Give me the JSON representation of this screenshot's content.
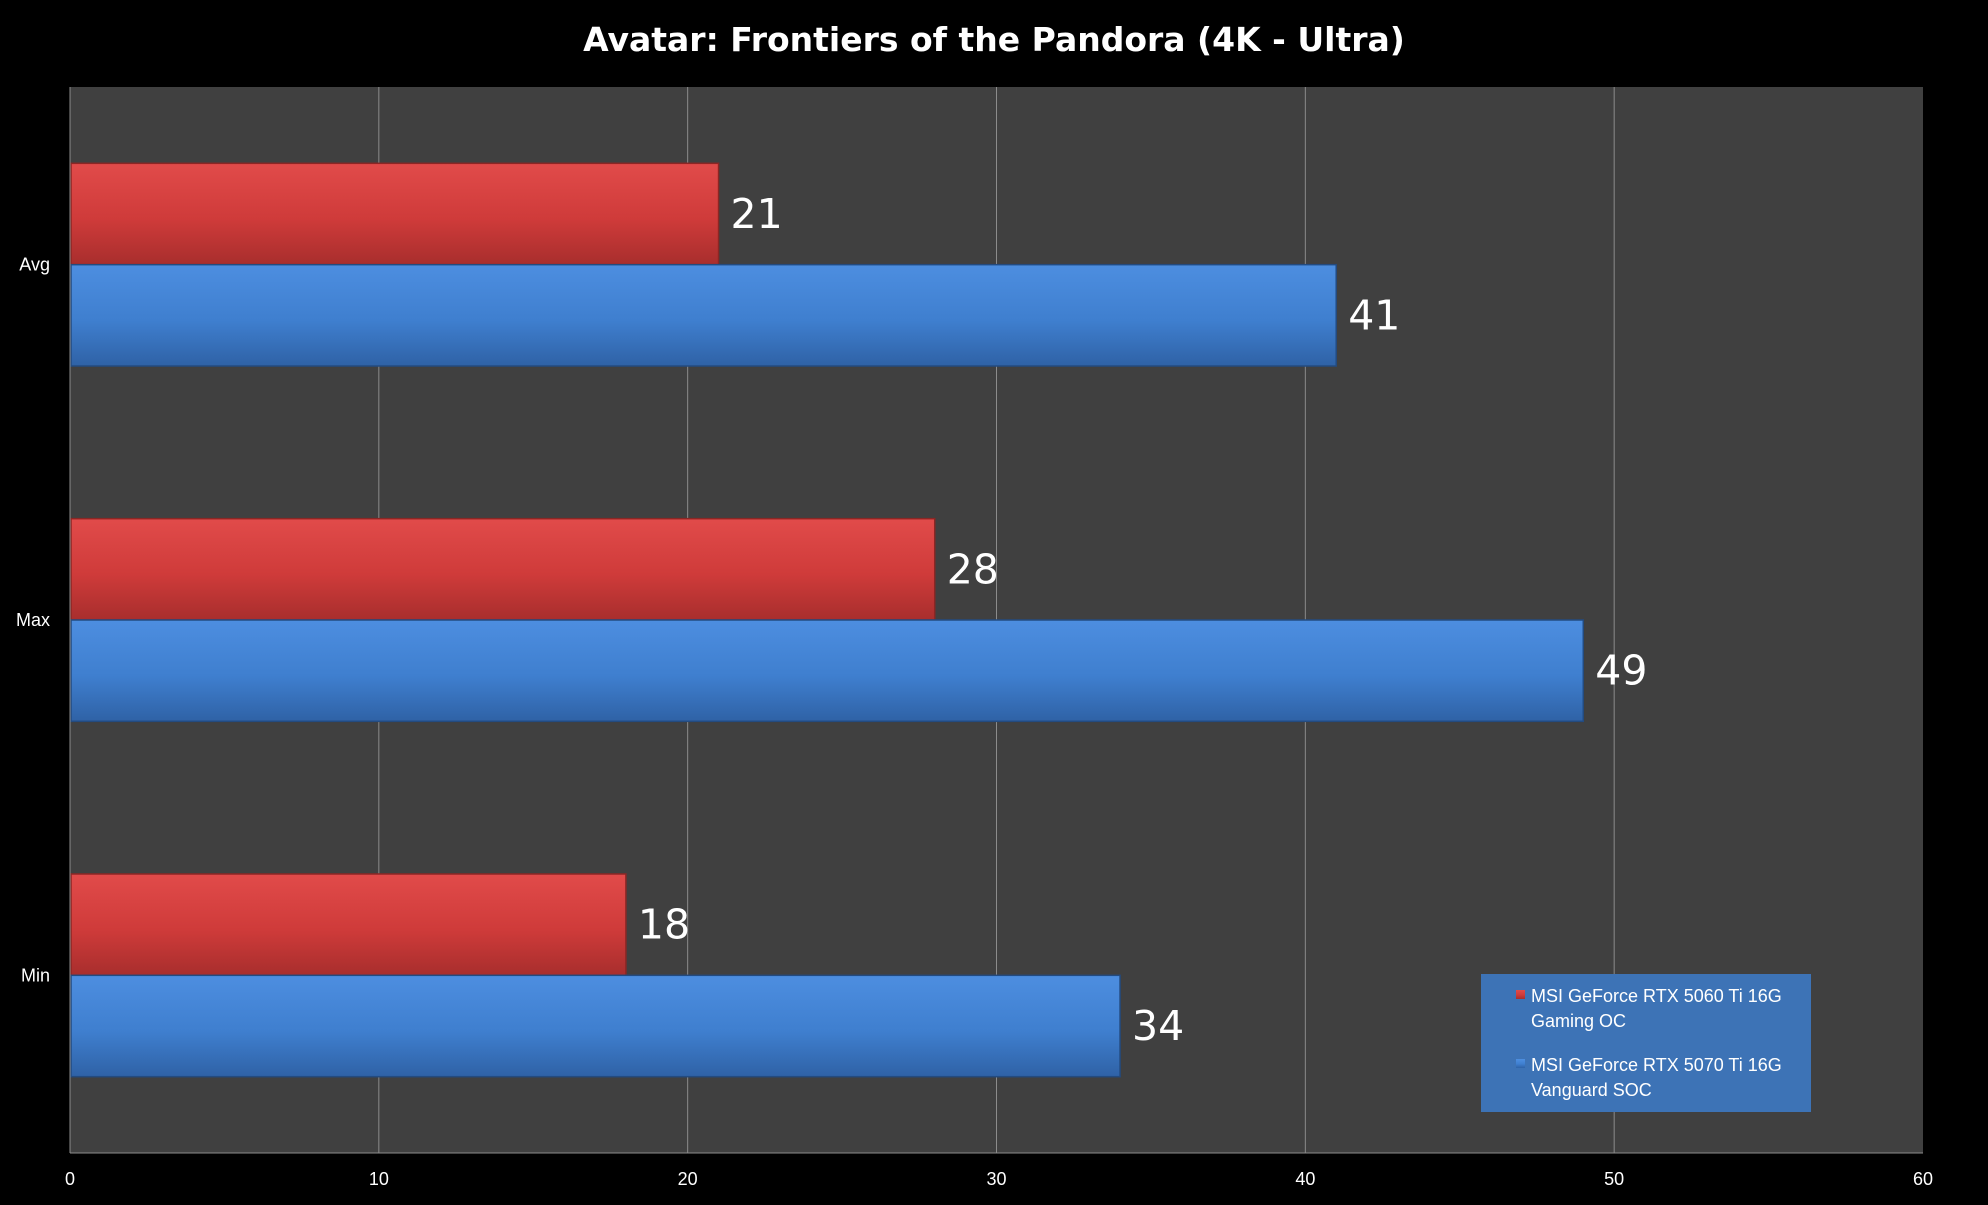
{
  "chart_data": {
    "type": "bar",
    "orientation": "horizontal",
    "title": "Avatar: Frontiers of the Pandora (4K - Ultra)",
    "categories": [
      "Avg",
      "Max",
      "Min"
    ],
    "series": [
      {
        "name": "MSI GeForce RTX 5060 Ti 16G Gaming OC",
        "values": [
          21,
          28,
          18
        ],
        "color": "#d63a38"
      },
      {
        "name": "MSI GeForce RTX 5070 Ti 16G Vanguard SOC",
        "values": [
          41,
          49,
          34
        ],
        "color": "#3f7fcf"
      }
    ],
    "xlim": [
      0,
      60
    ],
    "xticks": [
      0,
      10,
      20,
      30,
      40,
      50,
      60
    ],
    "xlabel": "",
    "ylabel": "",
    "grid": true,
    "legend_position": "bottom-right",
    "data_labels": true,
    "colors": {
      "background": "#000000",
      "plot_area": "#404040",
      "gridline": "#8c8c8c",
      "legend_bg": "#3d73b6"
    }
  }
}
